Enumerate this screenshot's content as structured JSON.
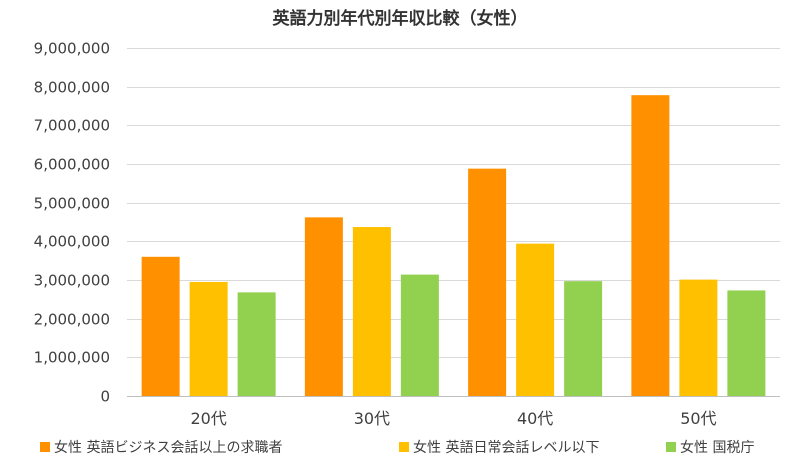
{
  "chart_data": {
    "type": "bar",
    "title": "英語力別年代別年収比較（女性）",
    "categories": [
      "20代",
      "30代",
      "40代",
      "50代"
    ],
    "ylim": [
      0,
      9000000
    ],
    "yticks": [
      0,
      1000000,
      2000000,
      3000000,
      4000000,
      5000000,
      6000000,
      7000000,
      8000000,
      9000000
    ],
    "ytick_labels": [
      "0",
      "1,000,000",
      "2,000,000",
      "3,000,000",
      "4,000,000",
      "5,000,000",
      "6,000,000",
      "7,000,000",
      "8,000,000",
      "9,000,000"
    ],
    "grid": true,
    "legend_position": "bottom",
    "series": [
      {
        "name": "女性 英語ビジネス会話以上の求職者",
        "color": "#FF9100",
        "values": [
          3600000,
          4620000,
          5880000,
          7780000
        ]
      },
      {
        "name": "女性 英語日常会話レベル以下",
        "color": "#FFC000",
        "values": [
          2950000,
          4370000,
          3940000,
          3010000
        ]
      },
      {
        "name": "女性 国税庁",
        "color": "#92D050",
        "values": [
          2680000,
          3140000,
          2970000,
          2730000
        ]
      }
    ]
  }
}
